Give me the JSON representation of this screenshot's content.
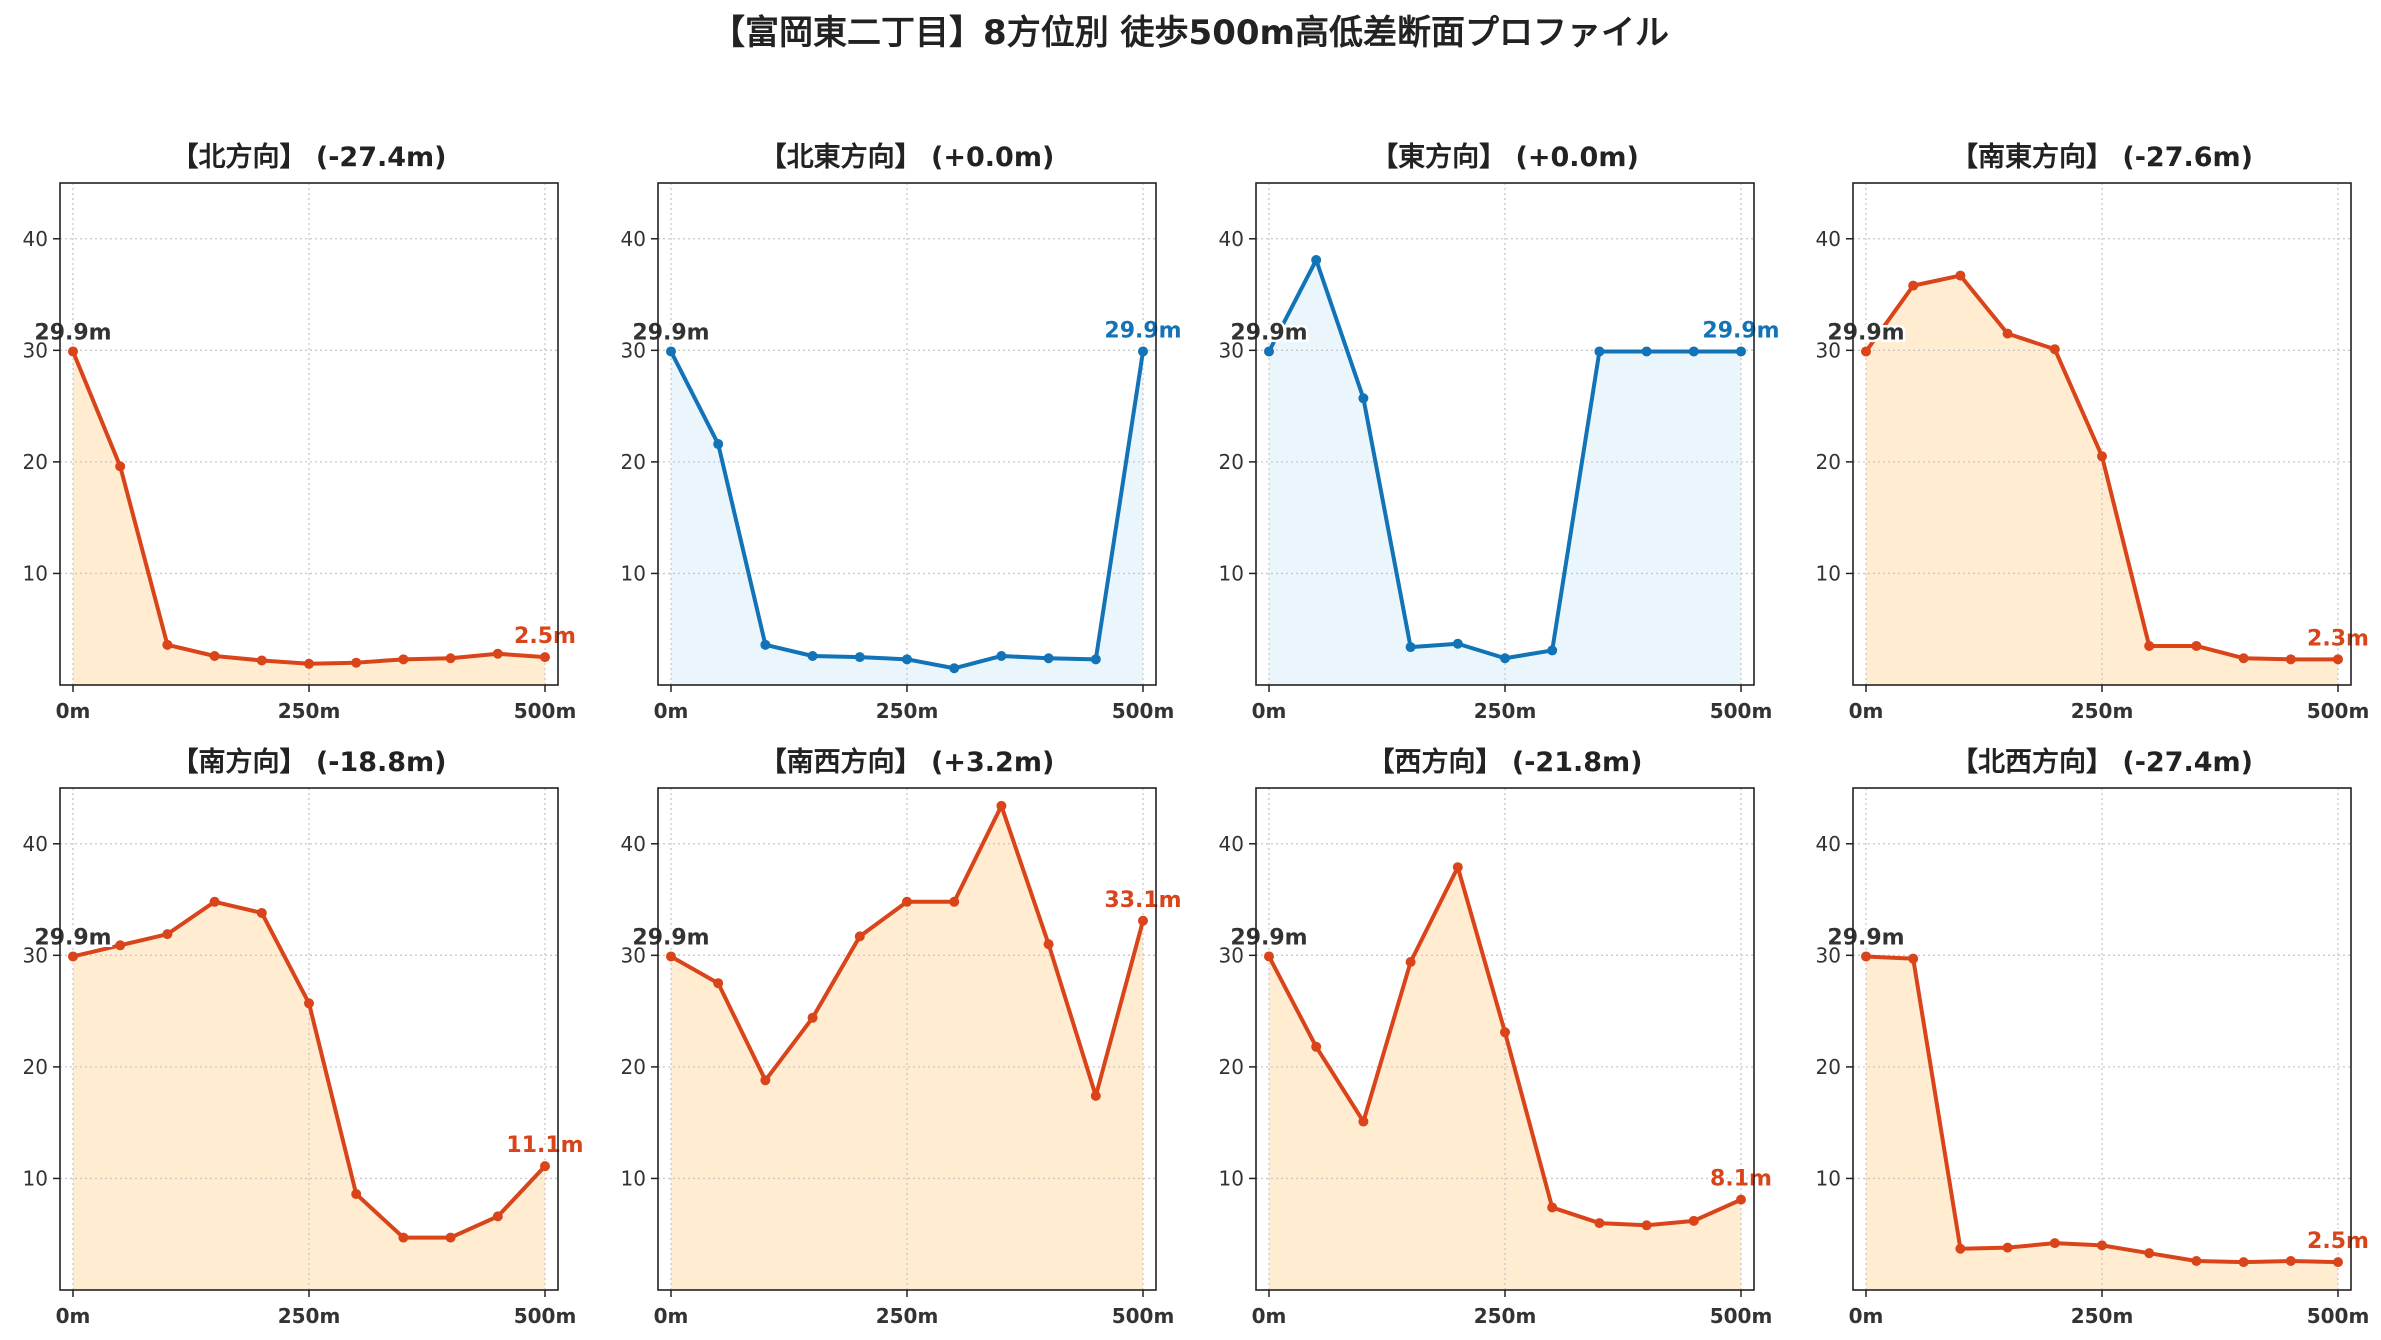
{
  "title": "【富岡東二丁目】8方位別 徒歩500m高低差断面プロファイル",
  "colors": {
    "down": "#d9441a",
    "down_fill": "#ffecd1",
    "flat": "#1273b7",
    "flat_fill": "#eaf6fb",
    "start_label": "#333333"
  },
  "chart_data": [
    {
      "type": "line",
      "title": "【北方向】 (-27.4m)",
      "style": "down",
      "x": [
        0,
        50,
        100,
        150,
        200,
        250,
        300,
        350,
        400,
        450,
        500
      ],
      "values": [
        29.9,
        19.6,
        3.6,
        2.6,
        2.2,
        1.9,
        2.0,
        2.3,
        2.4,
        2.8,
        2.5
      ],
      "xticks": [
        "0m",
        "250m",
        "500m"
      ],
      "yticks": [
        10,
        20,
        30,
        40
      ],
      "ylim": [
        0,
        45
      ],
      "start_label": "29.9m",
      "end_label": "2.5m",
      "grid": true
    },
    {
      "type": "line",
      "title": "【北東方向】 (+0.0m)",
      "style": "flat",
      "x": [
        0,
        50,
        100,
        150,
        200,
        250,
        300,
        350,
        400,
        450,
        500
      ],
      "values": [
        29.9,
        21.6,
        3.6,
        2.6,
        2.5,
        2.3,
        1.5,
        2.6,
        2.4,
        2.3,
        29.9
      ],
      "xticks": [
        "0m",
        "250m",
        "500m"
      ],
      "yticks": [
        10,
        20,
        30,
        40
      ],
      "ylim": [
        0,
        45
      ],
      "start_label": "29.9m",
      "end_label": "29.9m",
      "grid": true
    },
    {
      "type": "line",
      "title": "【東方向】 (+0.0m)",
      "style": "flat",
      "x": [
        0,
        50,
        100,
        150,
        200,
        250,
        300,
        350,
        400,
        450,
        500
      ],
      "values": [
        29.9,
        38.1,
        25.7,
        3.4,
        3.7,
        2.4,
        3.1,
        29.9,
        29.9,
        29.9,
        29.9
      ],
      "xticks": [
        "0m",
        "250m",
        "500m"
      ],
      "yticks": [
        10,
        20,
        30,
        40
      ],
      "ylim": [
        0,
        45
      ],
      "start_label": "29.9m",
      "end_label": "29.9m",
      "grid": true
    },
    {
      "type": "line",
      "title": "【南東方向】 (-27.6m)",
      "style": "down",
      "x": [
        0,
        50,
        100,
        150,
        200,
        250,
        300,
        350,
        400,
        450,
        500
      ],
      "values": [
        29.9,
        35.8,
        36.7,
        31.5,
        30.1,
        20.5,
        3.5,
        3.5,
        2.4,
        2.3,
        2.3
      ],
      "xticks": [
        "0m",
        "250m",
        "500m"
      ],
      "yticks": [
        10,
        20,
        30,
        40
      ],
      "ylim": [
        0,
        45
      ],
      "start_label": "29.9m",
      "end_label": "2.3m",
      "grid": true
    },
    {
      "type": "line",
      "title": "【南方向】 (-18.8m)",
      "style": "down",
      "x": [
        0,
        50,
        100,
        150,
        200,
        250,
        300,
        350,
        400,
        450,
        500
      ],
      "values": [
        29.9,
        30.9,
        31.9,
        34.8,
        33.8,
        25.7,
        8.6,
        4.7,
        4.7,
        6.6,
        11.1
      ],
      "xticks": [
        "0m",
        "250m",
        "500m"
      ],
      "yticks": [
        10,
        20,
        30,
        40
      ],
      "ylim": [
        0,
        45
      ],
      "start_label": "29.9m",
      "end_label": "11.1m",
      "grid": true
    },
    {
      "type": "line",
      "title": "【南西方向】 (+3.2m)",
      "style": "down",
      "x": [
        0,
        50,
        100,
        150,
        200,
        250,
        300,
        350,
        400,
        450,
        500
      ],
      "values": [
        29.9,
        27.5,
        18.8,
        24.4,
        31.7,
        34.8,
        34.8,
        43.4,
        31.0,
        17.4,
        33.1
      ],
      "xticks": [
        "0m",
        "250m",
        "500m"
      ],
      "yticks": [
        10,
        20,
        30,
        40
      ],
      "ylim": [
        0,
        45
      ],
      "start_label": "29.9m",
      "end_label": "33.1m",
      "grid": true
    },
    {
      "type": "line",
      "title": "【西方向】 (-21.8m)",
      "style": "down",
      "x": [
        0,
        50,
        100,
        150,
        200,
        250,
        300,
        350,
        400,
        450,
        500
      ],
      "values": [
        29.9,
        21.8,
        15.1,
        29.4,
        37.9,
        23.1,
        7.4,
        6.0,
        5.8,
        6.2,
        8.1
      ],
      "xticks": [
        "0m",
        "250m",
        "500m"
      ],
      "yticks": [
        10,
        20,
        30,
        40
      ],
      "ylim": [
        0,
        45
      ],
      "start_label": "29.9m",
      "end_label": "8.1m",
      "grid": true
    },
    {
      "type": "line",
      "title": "【北西方向】 (-27.4m)",
      "style": "down",
      "x": [
        0,
        50,
        100,
        150,
        200,
        250,
        300,
        350,
        400,
        450,
        500
      ],
      "values": [
        29.9,
        29.7,
        3.7,
        3.8,
        4.2,
        4.0,
        3.3,
        2.6,
        2.5,
        2.6,
        2.5
      ],
      "xticks": [
        "0m",
        "250m",
        "500m"
      ],
      "yticks": [
        10,
        20,
        30,
        40
      ],
      "ylim": [
        0,
        45
      ],
      "start_label": "29.9m",
      "end_label": "2.5m",
      "grid": true
    }
  ]
}
